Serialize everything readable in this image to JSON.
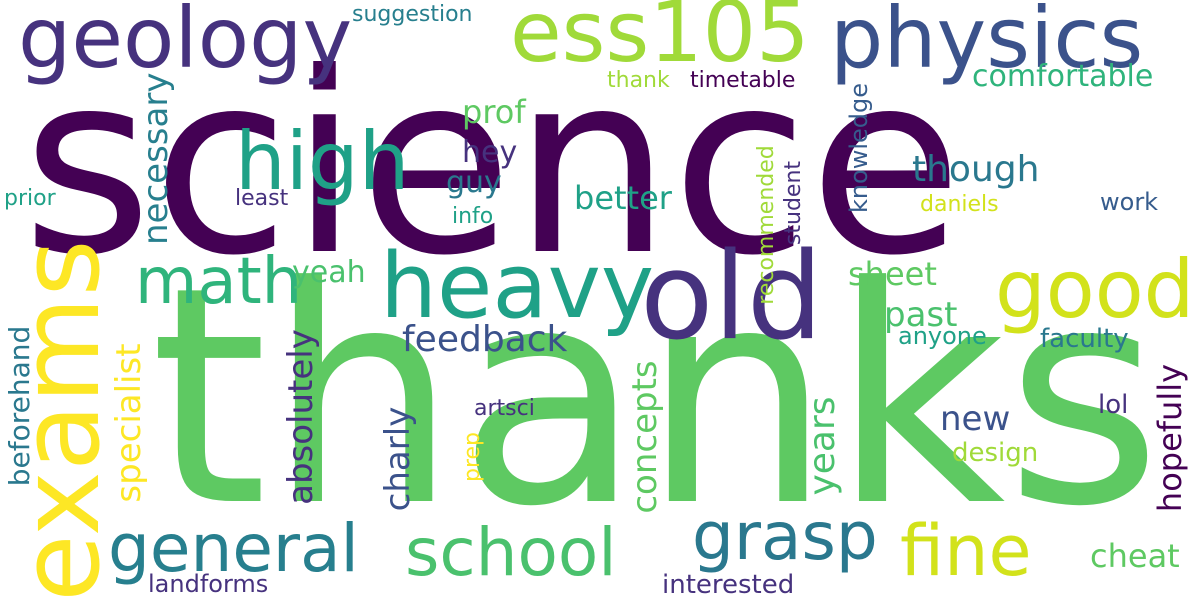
{
  "colors": {
    "c1": "#440154",
    "c2": "#46327e",
    "c3": "#365c8d",
    "c4": "#277f8e",
    "c5": "#1fa187",
    "c6": "#4ac16d",
    "c7": "#a0da39",
    "c8": "#fde725",
    "c9": "#d2e21b",
    "c10": "#5ec962",
    "c11": "#2a788e",
    "c12": "#3b528b"
  },
  "words": {
    "science": "science",
    "thanks": "thanks",
    "exams": "exams",
    "geology": "geology",
    "ess105": "ess105",
    "physics": "physics",
    "heavy": "heavy",
    "old": "old",
    "good": "good",
    "high": "high",
    "math": "math",
    "general": "general",
    "school": "school",
    "grasp": "grasp",
    "fine": "fine",
    "suggestion": "suggestion",
    "prof": "prof",
    "thank": "thank",
    "timetable": "timetable",
    "comfortable": "comfortable",
    "necessary": "necessary",
    "hey": "hey",
    "guy": "guy",
    "info": "info",
    "least": "least",
    "prior": "prior",
    "better": "better",
    "though": "though",
    "daniels": "daniels",
    "work": "work",
    "knowledge": "knowledge",
    "recommended": "recommended",
    "student": "student",
    "yeah": "yeah",
    "sheet": "sheet",
    "past": "past",
    "anyone": "anyone",
    "faculty": "faculty",
    "feedback": "feedback",
    "absolutely": "absolutely",
    "specialist": "specialist",
    "beforehand": "beforehand",
    "charly": "charly",
    "concepts": "concepts",
    "artsci": "artsci",
    "prep": "prep",
    "new": "new",
    "years": "years",
    "design": "design",
    "hopefully": "hopefully",
    "lol": "lol",
    "cheat": "cheat",
    "landforms": "landforms",
    "interested": "interested"
  }
}
